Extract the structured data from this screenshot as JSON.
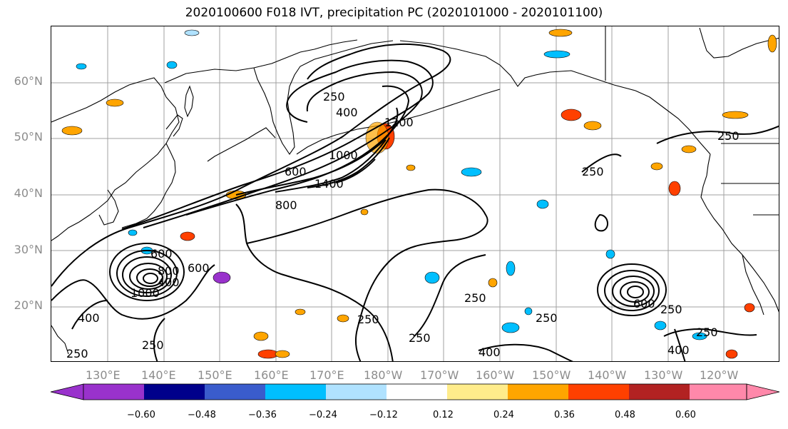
{
  "title": "2020100600 F018 IVT, precipitation PC (2020101000 - 2020101100)",
  "lat_labels": [
    "60°N",
    "50°N",
    "40°N",
    "30°N",
    "20°N"
  ],
  "lon_labels": [
    "130°E",
    "140°E",
    "150°E",
    "160°E",
    "170°E",
    "180°W",
    "170°W",
    "160°W",
    "150°W",
    "140°W",
    "130°W",
    "120°W"
  ],
  "contour_labels": [
    "250",
    "400",
    "600",
    "800",
    "1000",
    "1200",
    "1400",
    "250",
    "250",
    "250",
    "250",
    "250",
    "400",
    "600",
    "600",
    "400",
    "250",
    "400",
    "600",
    "800",
    "1000",
    "250",
    "250",
    "400",
    "250",
    "250"
  ],
  "colorbar": {
    "colors": [
      "#9932cc",
      "#00008b",
      "#3a5ccc",
      "#00bfff",
      "#b0e2ff",
      "#ffffff",
      "#ffec8b",
      "#ffa500",
      "#ff4000",
      "#b22222",
      "#ff88aa"
    ],
    "tick_labels": [
      "−0.60",
      "−0.48",
      "−0.36",
      "−0.24",
      "−0.12",
      "0.12",
      "0.24",
      "0.36",
      "0.48",
      "0.60"
    ]
  },
  "chart_data": {
    "type": "heatmap",
    "title": "2020100600 F018 IVT, precipitation PC (2020101000 - 2020101100)",
    "contour_levels": [
      250,
      400,
      600,
      800,
      1000,
      1200,
      1400
    ],
    "colorbar_bounds": [
      -0.6,
      -0.48,
      -0.36,
      -0.24,
      -0.12,
      0.12,
      0.24,
      0.36,
      0.48,
      0.6
    ],
    "lat_ticks": [
      "60°N",
      "50°N",
      "40°N",
      "30°N",
      "20°N"
    ],
    "lon_ticks": [
      "130°E",
      "140°E",
      "150°E",
      "160°E",
      "170°E",
      "180°W",
      "170°W",
      "160°W",
      "150°W",
      "140°W",
      "130°W",
      "120°W"
    ]
  }
}
